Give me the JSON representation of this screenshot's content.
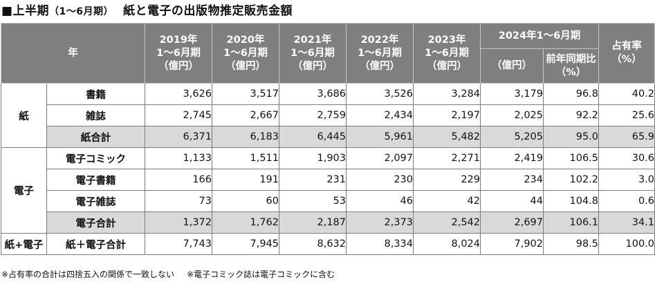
{
  "title": {
    "marker": "■上半期",
    "period": "（1〜6月期）",
    "text": "紙と電子の出版物推定販売金額"
  },
  "header": {
    "year_label": "年",
    "years": [
      {
        "y": "2019年",
        "m": "1〜6月期",
        "u": "（億円）"
      },
      {
        "y": "2020年",
        "m": "1〜6月期",
        "u": "（億円）"
      },
      {
        "y": "2021年",
        "m": "1〜6月期",
        "u": "（億円）"
      },
      {
        "y": "2022年",
        "m": "1〜6月期",
        "u": "（億円）"
      },
      {
        "y": "2023年",
        "m": "1〜6月期",
        "u": "（億円）"
      }
    ],
    "latest": "2024年1〜6月期",
    "latest_unit": "（億円）",
    "yoy_1": "前年同期比",
    "yoy_2": "（%）",
    "share_1": "占有率",
    "share_2": "（%）"
  },
  "groups": {
    "paper": "紙",
    "digital": "電子",
    "total": "紙+電子"
  },
  "rows": [
    {
      "item": "書籍",
      "values": [
        "3,626",
        "3,517",
        "3,686",
        "3,526",
        "3,284",
        "3,179",
        "96.8",
        "40.2"
      ]
    },
    {
      "item": "雑誌",
      "values": [
        "2,745",
        "2,667",
        "2,759",
        "2,434",
        "2,197",
        "2,025",
        "92.2",
        "25.6"
      ]
    },
    {
      "item": "紙合計",
      "values": [
        "6,371",
        "6,183",
        "6,445",
        "5,961",
        "5,482",
        "5,205",
        "95.0",
        "65.9"
      ]
    },
    {
      "item": "電子コミック",
      "values": [
        "1,133",
        "1,511",
        "1,903",
        "2,097",
        "2,271",
        "2,419",
        "106.5",
        "30.6"
      ]
    },
    {
      "item": "電子書籍",
      "values": [
        "166",
        "191",
        "231",
        "230",
        "229",
        "234",
        "102.2",
        "3.0"
      ]
    },
    {
      "item": "電子雑誌",
      "values": [
        "73",
        "60",
        "53",
        "46",
        "42",
        "44",
        "104.8",
        "0.6"
      ]
    },
    {
      "item": "電子合計",
      "values": [
        "1,372",
        "1,762",
        "2,187",
        "2,373",
        "2,542",
        "2,697",
        "106.1",
        "34.1"
      ]
    },
    {
      "item": "紙＋電子合計",
      "values": [
        "7,743",
        "7,945",
        "8,632",
        "8,334",
        "8,024",
        "7,902",
        "98.5",
        "100.0"
      ]
    }
  ],
  "footnotes": [
    "※占有率の合計は四捨五入の関係で一致しない",
    "※電子コミック誌は電子コミックに含む"
  ],
  "colors": {
    "header_bg": "#7f7f7f",
    "subtotal_bg": "#d9d9d9"
  }
}
